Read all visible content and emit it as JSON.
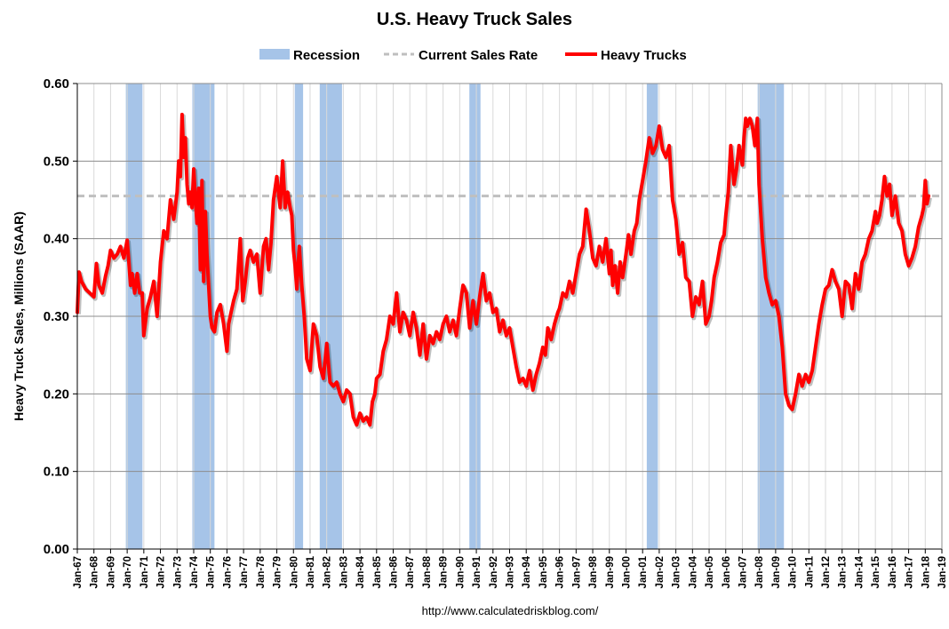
{
  "chart_data": {
    "type": "line",
    "title": "U.S. Heavy Truck Sales",
    "ylabel": "Heavy Truck Sales, Millions (SAAR)",
    "xlabel": "",
    "source": "http://www.calculatedriskblog.com/",
    "ylim": [
      0,
      0.6
    ],
    "xlim": [
      1967.0,
      2019.0
    ],
    "y_ticks": [
      "0.00",
      "0.10",
      "0.20",
      "0.30",
      "0.40",
      "0.50",
      "0.60"
    ],
    "x_ticks": [
      "Jan-67",
      "Jan-68",
      "Jan-69",
      "Jan-70",
      "Jan-71",
      "Jan-72",
      "Jan-73",
      "Jan-74",
      "Jan-75",
      "Jan-76",
      "Jan-77",
      "Jan-78",
      "Jan-79",
      "Jan-80",
      "Jan-81",
      "Jan-82",
      "Jan-83",
      "Jan-84",
      "Jan-85",
      "Jan-86",
      "Jan-87",
      "Jan-88",
      "Jan-89",
      "Jan-90",
      "Jan-91",
      "Jan-92",
      "Jan-93",
      "Jan-94",
      "Jan-95",
      "Jan-96",
      "Jan-97",
      "Jan-98",
      "Jan-99",
      "Jan-00",
      "Jan-01",
      "Jan-02",
      "Jan-03",
      "Jan-04",
      "Jan-05",
      "Jan-06",
      "Jan-07",
      "Jan-08",
      "Jan-09",
      "Jan-10",
      "Jan-11",
      "Jan-12",
      "Jan-13",
      "Jan-14",
      "Jan-15",
      "Jan-16",
      "Jan-17",
      "Jan-18",
      "Jan-19"
    ],
    "legend": [
      {
        "label": "Recession",
        "kind": "band",
        "color": "#a6c4e8"
      },
      {
        "label": "Current Sales Rate",
        "kind": "dashed",
        "color": "#bfbfbf"
      },
      {
        "label": "Heavy Trucks",
        "kind": "line",
        "color": "#ff0000"
      }
    ],
    "current_sales_rate": 0.455,
    "recessions": [
      {
        "start": 1969.92,
        "end": 1970.92
      },
      {
        "start": 1973.92,
        "end": 1975.25
      },
      {
        "start": 1980.08,
        "end": 1980.58
      },
      {
        "start": 1981.58,
        "end": 1982.92
      },
      {
        "start": 1990.58,
        "end": 1991.25
      },
      {
        "start": 2001.25,
        "end": 2001.92
      },
      {
        "start": 2007.92,
        "end": 2009.5
      }
    ],
    "series": [
      {
        "name": "Heavy Trucks",
        "color": "#ff0000",
        "x": [
          1967.0,
          1967.1,
          1967.25,
          1967.5,
          1967.75,
          1968.0,
          1968.15,
          1968.3,
          1968.5,
          1968.7,
          1968.85,
          1969.0,
          1969.2,
          1969.4,
          1969.6,
          1969.8,
          1970.0,
          1970.1,
          1970.2,
          1970.3,
          1970.45,
          1970.6,
          1970.75,
          1970.9,
          1971.0,
          1971.2,
          1971.4,
          1971.6,
          1971.8,
          1972.0,
          1972.2,
          1972.4,
          1972.6,
          1972.8,
          1973.0,
          1973.1,
          1973.2,
          1973.3,
          1973.4,
          1973.5,
          1973.6,
          1973.7,
          1973.8,
          1973.9,
          1974.0,
          1974.1,
          1974.2,
          1974.3,
          1974.4,
          1974.5,
          1974.6,
          1974.7,
          1974.8,
          1974.9,
          1975.0,
          1975.1,
          1975.25,
          1975.4,
          1975.6,
          1975.8,
          1976.0,
          1976.1,
          1976.2,
          1976.4,
          1976.6,
          1976.8,
          1976.95,
          1977.1,
          1977.25,
          1977.4,
          1977.6,
          1977.8,
          1978.0,
          1978.2,
          1978.35,
          1978.5,
          1978.65,
          1978.8,
          1979.0,
          1979.1,
          1979.2,
          1979.35,
          1979.5,
          1979.65,
          1979.8,
          1979.9,
          1980.0,
          1980.1,
          1980.2,
          1980.35,
          1980.5,
          1980.65,
          1980.8,
          1981.0,
          1981.2,
          1981.4,
          1981.6,
          1981.8,
          1982.0,
          1982.2,
          1982.4,
          1982.6,
          1982.8,
          1983.0,
          1983.2,
          1983.4,
          1983.6,
          1983.8,
          1984.0,
          1984.2,
          1984.4,
          1984.6,
          1984.75,
          1984.9,
          1985.0,
          1985.2,
          1985.4,
          1985.6,
          1985.8,
          1986.0,
          1986.2,
          1986.4,
          1986.6,
          1986.8,
          1987.0,
          1987.2,
          1987.4,
          1987.6,
          1987.8,
          1988.0,
          1988.2,
          1988.4,
          1988.6,
          1988.8,
          1989.0,
          1989.2,
          1989.4,
          1989.6,
          1989.8,
          1990.0,
          1990.2,
          1990.4,
          1990.6,
          1990.8,
          1991.0,
          1991.2,
          1991.4,
          1991.6,
          1991.8,
          1992.0,
          1992.2,
          1992.4,
          1992.6,
          1992.8,
          1993.0,
          1993.2,
          1993.4,
          1993.6,
          1993.8,
          1994.0,
          1994.2,
          1994.4,
          1994.6,
          1994.8,
          1995.0,
          1995.15,
          1995.3,
          1995.5,
          1995.7,
          1995.9,
          1996.0,
          1996.2,
          1996.4,
          1996.6,
          1996.8,
          1997.0,
          1997.2,
          1997.4,
          1997.6,
          1997.8,
          1998.0,
          1998.2,
          1998.4,
          1998.6,
          1998.8,
          1999.0,
          1999.1,
          1999.2,
          1999.35,
          1999.5,
          1999.65,
          1999.8,
          2000.0,
          2000.15,
          2000.3,
          2000.5,
          2000.65,
          2000.8,
          2001.0,
          2001.2,
          2001.4,
          2001.6,
          2001.8,
          2002.0,
          2002.2,
          2002.4,
          2002.6,
          2002.8,
          2003.0,
          2003.2,
          2003.4,
          2003.6,
          2003.8,
          2004.0,
          2004.2,
          2004.4,
          2004.6,
          2004.8,
          2005.0,
          2005.15,
          2005.3,
          2005.5,
          2005.7,
          2005.9,
          2006.0,
          2006.15,
          2006.3,
          2006.5,
          2006.65,
          2006.8,
          2006.9,
          2007.0,
          2007.1,
          2007.2,
          2007.3,
          2007.45,
          2007.6,
          2007.75,
          2007.9,
          2008.0,
          2008.2,
          2008.4,
          2008.6,
          2008.8,
          2009.0,
          2009.2,
          2009.4,
          2009.6,
          2009.8,
          2010.0,
          2010.2,
          2010.4,
          2010.6,
          2010.8,
          2011.0,
          2011.2,
          2011.4,
          2011.6,
          2011.8,
          2012.0,
          2012.2,
          2012.4,
          2012.6,
          2012.8,
          2013.0,
          2013.2,
          2013.4,
          2013.6,
          2013.8,
          2014.0,
          2014.2,
          2014.4,
          2014.6,
          2014.8,
          2015.0,
          2015.1,
          2015.25,
          2015.4,
          2015.55,
          2015.7,
          2015.85,
          2016.0,
          2016.2,
          2016.4,
          2016.6,
          2016.8,
          2017.0,
          2017.2,
          2017.4,
          2017.6,
          2017.8,
          2017.9,
          2018.0,
          2018.1,
          2018.2
        ],
        "values": [
          0.305,
          0.357,
          0.345,
          0.335,
          0.33,
          0.325,
          0.368,
          0.34,
          0.33,
          0.352,
          0.365,
          0.385,
          0.375,
          0.38,
          0.39,
          0.375,
          0.398,
          0.37,
          0.34,
          0.355,
          0.33,
          0.355,
          0.33,
          0.33,
          0.275,
          0.31,
          0.325,
          0.345,
          0.3,
          0.37,
          0.41,
          0.4,
          0.45,
          0.425,
          0.46,
          0.5,
          0.48,
          0.56,
          0.505,
          0.53,
          0.47,
          0.445,
          0.46,
          0.44,
          0.49,
          0.45,
          0.42,
          0.465,
          0.36,
          0.475,
          0.345,
          0.435,
          0.38,
          0.34,
          0.3,
          0.285,
          0.28,
          0.305,
          0.315,
          0.29,
          0.255,
          0.29,
          0.3,
          0.32,
          0.335,
          0.4,
          0.32,
          0.345,
          0.375,
          0.385,
          0.37,
          0.38,
          0.33,
          0.39,
          0.4,
          0.36,
          0.395,
          0.45,
          0.48,
          0.46,
          0.44,
          0.5,
          0.44,
          0.46,
          0.44,
          0.43,
          0.385,
          0.365,
          0.335,
          0.39,
          0.34,
          0.3,
          0.245,
          0.23,
          0.29,
          0.275,
          0.235,
          0.22,
          0.265,
          0.215,
          0.21,
          0.215,
          0.2,
          0.19,
          0.205,
          0.2,
          0.17,
          0.16,
          0.175,
          0.165,
          0.17,
          0.16,
          0.19,
          0.2,
          0.22,
          0.225,
          0.255,
          0.27,
          0.3,
          0.29,
          0.33,
          0.28,
          0.305,
          0.295,
          0.275,
          0.305,
          0.285,
          0.25,
          0.29,
          0.245,
          0.275,
          0.265,
          0.28,
          0.27,
          0.29,
          0.3,
          0.28,
          0.295,
          0.275,
          0.31,
          0.34,
          0.33,
          0.285,
          0.32,
          0.29,
          0.325,
          0.355,
          0.32,
          0.33,
          0.305,
          0.31,
          0.28,
          0.295,
          0.275,
          0.285,
          0.26,
          0.235,
          0.215,
          0.22,
          0.21,
          0.23,
          0.205,
          0.225,
          0.24,
          0.26,
          0.25,
          0.285,
          0.27,
          0.29,
          0.305,
          0.31,
          0.33,
          0.325,
          0.345,
          0.33,
          0.355,
          0.38,
          0.39,
          0.438,
          0.41,
          0.375,
          0.365,
          0.39,
          0.37,
          0.4,
          0.355,
          0.385,
          0.34,
          0.365,
          0.33,
          0.37,
          0.35,
          0.38,
          0.405,
          0.38,
          0.41,
          0.42,
          0.45,
          0.475,
          0.5,
          0.53,
          0.51,
          0.52,
          0.545,
          0.515,
          0.505,
          0.52,
          0.45,
          0.425,
          0.38,
          0.395,
          0.35,
          0.345,
          0.3,
          0.325,
          0.315,
          0.345,
          0.29,
          0.3,
          0.32,
          0.35,
          0.37,
          0.395,
          0.405,
          0.43,
          0.46,
          0.52,
          0.47,
          0.49,
          0.52,
          0.505,
          0.495,
          0.53,
          0.555,
          0.545,
          0.555,
          0.545,
          0.52,
          0.555,
          0.47,
          0.4,
          0.35,
          0.33,
          0.315,
          0.32,
          0.3,
          0.26,
          0.2,
          0.185,
          0.18,
          0.2,
          0.225,
          0.21,
          0.225,
          0.215,
          0.23,
          0.26,
          0.29,
          0.315,
          0.335,
          0.34,
          0.36,
          0.345,
          0.335,
          0.3,
          0.345,
          0.34,
          0.31,
          0.355,
          0.335,
          0.37,
          0.38,
          0.4,
          0.41,
          0.435,
          0.42,
          0.43,
          0.45,
          0.48,
          0.455,
          0.47,
          0.43,
          0.455,
          0.42,
          0.41,
          0.38,
          0.365,
          0.375,
          0.39,
          0.415,
          0.43,
          0.44,
          0.475,
          0.445,
          0.455
        ]
      }
    ]
  }
}
